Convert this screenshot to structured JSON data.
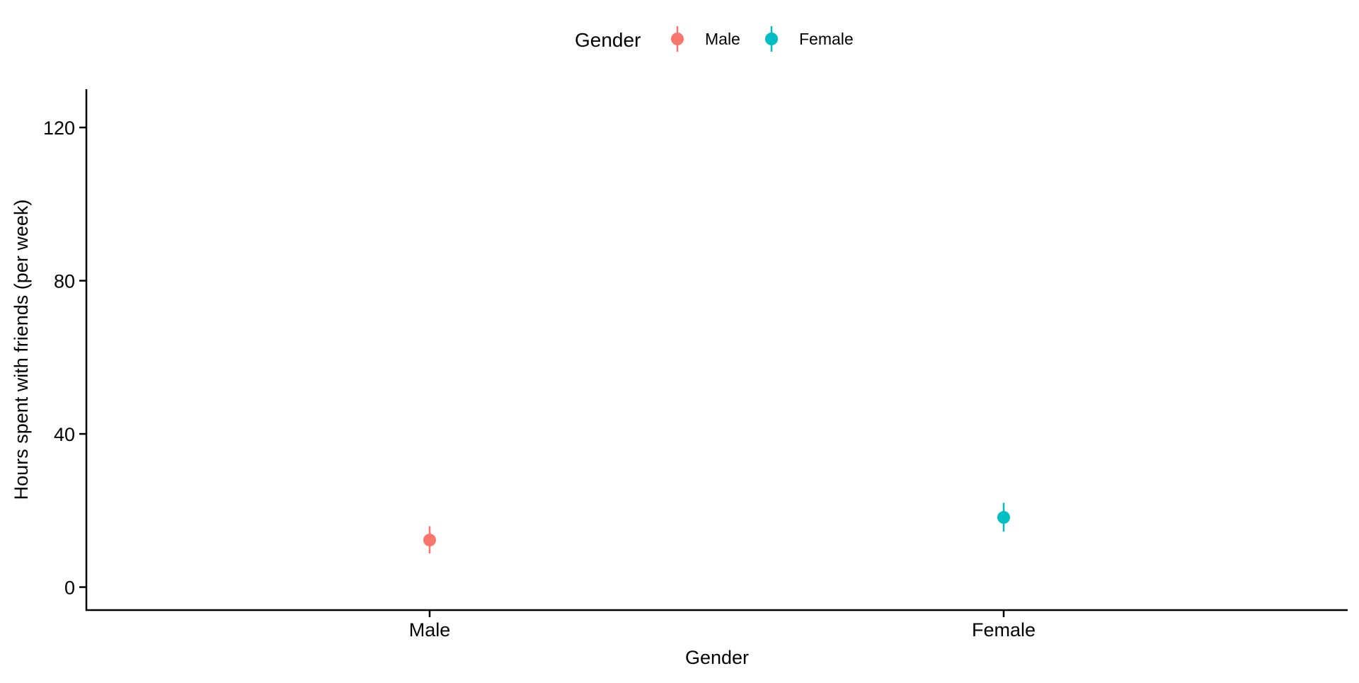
{
  "chart_data": {
    "type": "scatter",
    "subtype": "point-with-errorbars",
    "title": "",
    "xlabel": "Gender",
    "ylabel": "Hours spent with friends (per week)",
    "categories": [
      "Male",
      "Female"
    ],
    "ylim": [
      -6,
      130
    ],
    "yticks": [
      0,
      40,
      80,
      120
    ],
    "grid": false,
    "legend": {
      "title": "Gender",
      "position": "top",
      "entries": [
        "Male",
        "Female"
      ]
    },
    "series": [
      {
        "name": "Male",
        "color": "#F8766D",
        "x": "Male",
        "y": 12.3,
        "ymin": 8.8,
        "ymax": 15.9
      },
      {
        "name": "Female",
        "color": "#00BFC4",
        "x": "Female",
        "y": 18.2,
        "ymin": 14.5,
        "ymax": 22.0
      }
    ]
  }
}
